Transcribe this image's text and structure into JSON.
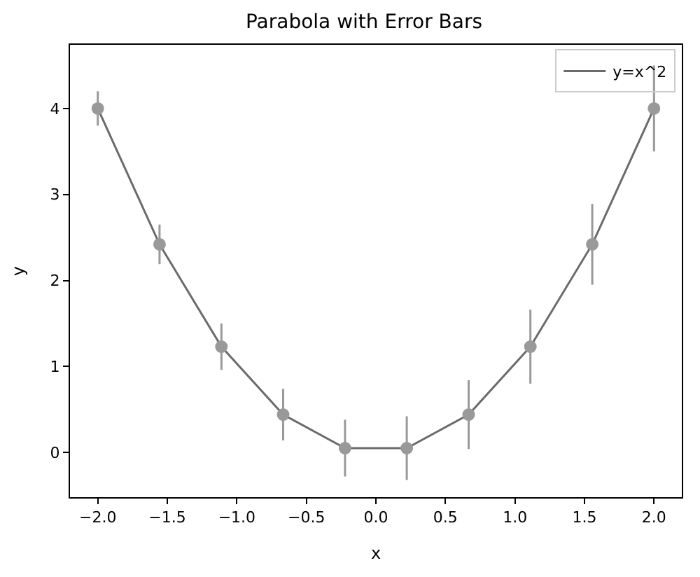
{
  "chart_data": {
    "type": "line",
    "title": "Parabola with Error Bars",
    "xlabel": "x",
    "ylabel": "y",
    "x": [
      -2.0,
      -1.556,
      -1.111,
      -0.667,
      -0.222,
      0.222,
      0.667,
      1.111,
      1.556,
      2.0
    ],
    "series": [
      {
        "name": "y=x^2",
        "color": "#6b6b6b",
        "colors": [
          "#999999",
          "#999999",
          "#999999",
          "#999999",
          "#999999",
          "#999999",
          "#999999",
          "#999999",
          "#999999",
          "#999999"
        ],
        "values": [
          4.0,
          2.42,
          1.23,
          0.44,
          0.05,
          0.05,
          0.44,
          1.23,
          2.42,
          4.0
        ],
        "errors": [
          0.2,
          0.23,
          0.27,
          0.3,
          0.33,
          0.37,
          0.4,
          0.43,
          0.47,
          0.5
        ]
      }
    ],
    "xlim": [
      -2.2,
      2.2
    ],
    "ylim": [
      -0.52,
      4.74
    ],
    "xticks": [
      {
        "value": -2.0,
        "label": "−2.0"
      },
      {
        "value": -1.5,
        "label": "−1.5"
      },
      {
        "value": -1.0,
        "label": "−1.0"
      },
      {
        "value": -0.5,
        "label": "−0.5"
      },
      {
        "value": 0,
        "label": "0.0"
      },
      {
        "value": 0.5,
        "label": "0.5"
      },
      {
        "value": 1.0,
        "label": "1.0"
      },
      {
        "value": 1.5,
        "label": "1.5"
      },
      {
        "value": 2.0,
        "label": "2.0"
      }
    ],
    "yticks": [
      0,
      1,
      2,
      3,
      4
    ],
    "legend": "top right",
    "marker": "circle",
    "line_style": "solid"
  }
}
